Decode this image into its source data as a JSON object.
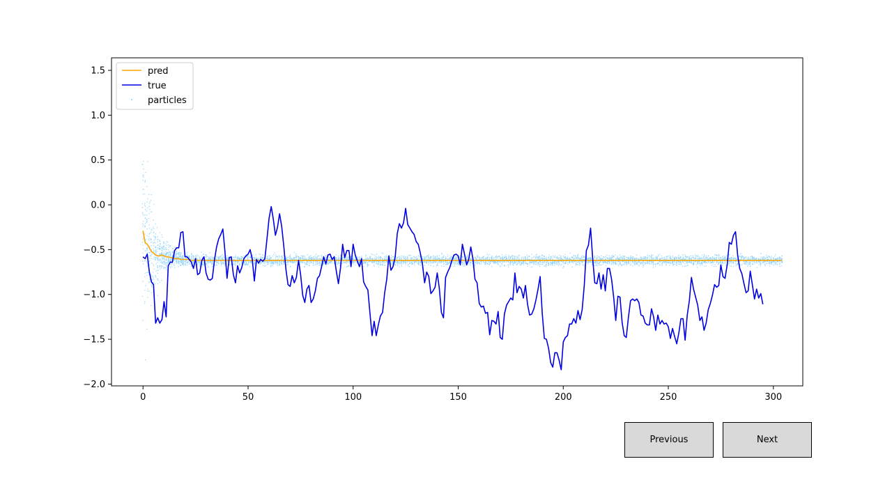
{
  "controls": {
    "previous_label": "Previous",
    "next_label": "Next"
  },
  "chart_data": {
    "type": "line",
    "title": "",
    "xlabel": "",
    "ylabel": "",
    "xlim": [
      -15,
      314
    ],
    "ylim": [
      -2.02,
      1.64
    ],
    "xticks": [
      0,
      50,
      100,
      150,
      200,
      250,
      300
    ],
    "yticks": [
      -2.0,
      -1.5,
      -1.0,
      -0.5,
      0.0,
      0.5,
      1.0,
      1.5
    ],
    "grid": false,
    "legend": {
      "placement": "upper-left",
      "entries": [
        "pred",
        "true",
        "particles"
      ]
    },
    "colors": {
      "pred": "#ffa500",
      "true": "#0000e0",
      "particles": "#87cefa"
    },
    "series": [
      {
        "name": "pred",
        "x_start": 0,
        "values": [
          -0.29,
          -0.42,
          -0.44,
          -0.48,
          -0.52,
          -0.54,
          -0.56,
          -0.57,
          -0.57,
          -0.56,
          -0.57,
          -0.58,
          -0.58,
          -0.59,
          -0.59,
          -0.6,
          -0.6,
          -0.6,
          -0.61,
          -0.61,
          -0.61,
          -0.61,
          -0.61,
          -0.62,
          -0.62,
          -0.61,
          -0.62,
          -0.62,
          -0.62,
          -0.62,
          -0.62,
          -0.62,
          -0.62,
          -0.62,
          -0.62,
          -0.62,
          -0.62,
          -0.62,
          -0.62,
          -0.62,
          -0.62,
          -0.62,
          -0.62,
          -0.62,
          -0.62,
          -0.62,
          -0.62,
          -0.62,
          -0.62,
          -0.62,
          -0.62,
          -0.62,
          -0.62,
          -0.62,
          -0.62,
          -0.62,
          -0.62,
          -0.62,
          -0.62,
          -0.62,
          -0.62,
          -0.62,
          -0.62,
          -0.62,
          -0.62,
          -0.62,
          -0.62,
          -0.62,
          -0.62,
          -0.62,
          -0.62,
          -0.62,
          -0.62,
          -0.62,
          -0.62,
          -0.62,
          -0.62,
          -0.62,
          -0.62,
          -0.62,
          -0.62,
          -0.62,
          -0.62,
          -0.62,
          -0.62,
          -0.62,
          -0.62,
          -0.62,
          -0.62,
          -0.62,
          -0.62,
          -0.62,
          -0.62,
          -0.62,
          -0.62,
          -0.62,
          -0.62,
          -0.62,
          -0.62,
          -0.62,
          -0.62,
          -0.62,
          -0.62,
          -0.62,
          -0.62,
          -0.62,
          -0.62,
          -0.62,
          -0.62,
          -0.62,
          -0.62,
          -0.62,
          -0.62,
          -0.62,
          -0.62,
          -0.62,
          -0.62,
          -0.62,
          -0.62,
          -0.62,
          -0.62,
          -0.62,
          -0.62,
          -0.62,
          -0.62,
          -0.62,
          -0.62,
          -0.62,
          -0.62,
          -0.62,
          -0.62,
          -0.62,
          -0.62,
          -0.62,
          -0.62,
          -0.62,
          -0.62,
          -0.62,
          -0.62,
          -0.62,
          -0.62,
          -0.62,
          -0.62,
          -0.62,
          -0.62,
          -0.62,
          -0.62,
          -0.62,
          -0.62,
          -0.62,
          -0.62,
          -0.62,
          -0.62,
          -0.62,
          -0.62,
          -0.62,
          -0.62,
          -0.62,
          -0.62,
          -0.62,
          -0.62,
          -0.62,
          -0.62,
          -0.62,
          -0.62,
          -0.62,
          -0.62,
          -0.62,
          -0.62,
          -0.62,
          -0.62,
          -0.62,
          -0.62,
          -0.62,
          -0.62,
          -0.62,
          -0.62,
          -0.62,
          -0.62,
          -0.62,
          -0.62,
          -0.62,
          -0.62,
          -0.62,
          -0.62,
          -0.62,
          -0.62,
          -0.62,
          -0.62,
          -0.62,
          -0.62,
          -0.62,
          -0.62,
          -0.62,
          -0.62,
          -0.62,
          -0.62,
          -0.62,
          -0.62,
          -0.62,
          -0.62,
          -0.62,
          -0.62,
          -0.62,
          -0.62,
          -0.62,
          -0.62,
          -0.62,
          -0.62,
          -0.62,
          -0.62,
          -0.62,
          -0.62,
          -0.62,
          -0.62,
          -0.62,
          -0.62,
          -0.62,
          -0.62,
          -0.62,
          -0.62,
          -0.62,
          -0.62,
          -0.62,
          -0.62,
          -0.62,
          -0.62,
          -0.62,
          -0.62,
          -0.62,
          -0.62,
          -0.62,
          -0.62,
          -0.62,
          -0.62,
          -0.62,
          -0.62,
          -0.62,
          -0.62,
          -0.62,
          -0.62,
          -0.62,
          -0.62,
          -0.62,
          -0.62,
          -0.62,
          -0.62,
          -0.62,
          -0.62,
          -0.62,
          -0.62,
          -0.62,
          -0.62,
          -0.62,
          -0.62,
          -0.62,
          -0.62,
          -0.62,
          -0.62,
          -0.62,
          -0.62,
          -0.62,
          -0.62,
          -0.62,
          -0.62,
          -0.62,
          -0.62,
          -0.62,
          -0.62,
          -0.62,
          -0.62,
          -0.62,
          -0.62,
          -0.62,
          -0.62,
          -0.62,
          -0.62,
          -0.62,
          -0.62,
          -0.62,
          -0.62,
          -0.62,
          -0.62,
          -0.62,
          -0.62,
          -0.62,
          -0.62,
          -0.62,
          -0.62,
          -0.62,
          -0.62,
          -0.62,
          -0.62,
          -0.62,
          -0.62,
          -0.62,
          -0.62,
          -0.62,
          -0.62,
          -0.62,
          -0.62,
          -0.62,
          -0.62,
          -0.62,
          -0.62
        ]
      },
      {
        "name": "true",
        "x_start": 0,
        "values": [
          -0.58,
          -0.6,
          -0.55,
          -0.75,
          -0.86,
          -0.89,
          -1.32,
          -1.26,
          -1.32,
          -1.28,
          -1.08,
          -1.25,
          -0.68,
          -0.64,
          -0.64,
          -0.51,
          -0.48,
          -0.48,
          -0.31,
          -0.3,
          -0.58,
          -0.58,
          -0.61,
          -0.64,
          -0.71,
          -0.6,
          -0.78,
          -0.76,
          -0.62,
          -0.58,
          -0.76,
          -0.83,
          -0.84,
          -0.82,
          -0.62,
          -0.47,
          -0.38,
          -0.33,
          -0.27,
          -0.52,
          -0.82,
          -0.59,
          -0.58,
          -0.78,
          -0.87,
          -0.68,
          -0.76,
          -0.7,
          -0.6,
          -0.57,
          -0.55,
          -0.5,
          -0.61,
          -0.85,
          -0.61,
          -0.65,
          -0.61,
          -0.63,
          -0.6,
          -0.38,
          -0.15,
          -0.02,
          -0.16,
          -0.34,
          -0.25,
          -0.1,
          -0.24,
          -0.46,
          -0.72,
          -0.89,
          -0.91,
          -0.79,
          -0.87,
          -0.81,
          -0.62,
          -0.78,
          -1.01,
          -1.09,
          -0.94,
          -0.9,
          -1.09,
          -1.05,
          -0.96,
          -0.82,
          -0.79,
          -0.69,
          -0.58,
          -0.66,
          -0.56,
          -0.55,
          -0.61,
          -0.58,
          -0.74,
          -0.88,
          -0.7,
          -0.44,
          -0.59,
          -0.51,
          -0.51,
          -0.69,
          -0.44,
          -0.56,
          -0.63,
          -0.69,
          -0.6,
          -0.86,
          -0.91,
          -0.95,
          -1.21,
          -1.46,
          -1.3,
          -1.46,
          -1.34,
          -1.24,
          -1.2,
          -0.98,
          -0.83,
          -0.57,
          -0.73,
          -0.69,
          -0.58,
          -0.32,
          -0.21,
          -0.26,
          -0.2,
          -0.04,
          -0.22,
          -0.26,
          -0.3,
          -0.33,
          -0.41,
          -0.44,
          -0.54,
          -0.66,
          -0.87,
          -0.75,
          -0.8,
          -0.99,
          -0.96,
          -0.92,
          -0.76,
          -0.93,
          -1.2,
          -1.26,
          -0.81,
          -0.75,
          -0.7,
          -0.62,
          -0.56,
          -0.55,
          -0.57,
          -0.67,
          -0.44,
          -0.55,
          -0.67,
          -0.61,
          -0.47,
          -0.6,
          -0.83,
          -0.87,
          -1.1,
          -1.14,
          -1.13,
          -1.21,
          -1.2,
          -1.45,
          -1.29,
          -1.3,
          -1.33,
          -1.19,
          -1.48,
          -1.5,
          -1.22,
          -1.12,
          -1.08,
          -1.04,
          -1.06,
          -0.76,
          -0.98,
          -0.91,
          -0.94,
          -1.04,
          -0.9,
          -1.11,
          -1.23,
          -1.22,
          -1.16,
          -1.06,
          -0.94,
          -0.8,
          -1.21,
          -1.49,
          -1.5,
          -1.6,
          -1.76,
          -1.81,
          -1.65,
          -1.65,
          -1.73,
          -1.84,
          -1.53,
          -1.48,
          -1.46,
          -1.33,
          -1.33,
          -1.27,
          -1.32,
          -1.18,
          -1.28,
          -1.17,
          -0.9,
          -0.51,
          -0.45,
          -0.26,
          -0.6,
          -0.87,
          -0.88,
          -0.76,
          -0.94,
          -0.78,
          -0.96,
          -0.71,
          -0.71,
          -0.83,
          -1.03,
          -1.29,
          -1.02,
          -1.03,
          -1.31,
          -1.46,
          -1.48,
          -1.26,
          -1.07,
          -1.05,
          -1.07,
          -1.05,
          -1.09,
          -1.23,
          -1.24,
          -1.32,
          -1.34,
          -1.34,
          -1.16,
          -1.25,
          -1.4,
          -1.23,
          -1.33,
          -1.29,
          -1.33,
          -1.32,
          -1.36,
          -1.49,
          -1.38,
          -1.47,
          -1.55,
          -1.43,
          -1.27,
          -1.27,
          -1.51,
          -1.23,
          -1.07,
          -0.81,
          -0.94,
          -1.03,
          -1.12,
          -1.29,
          -1.25,
          -1.4,
          -1.32,
          -1.17,
          -1.1,
          -1.01,
          -0.89,
          -0.92,
          -0.9,
          -0.67,
          -0.8,
          -0.82,
          -0.67,
          -0.42,
          -0.44,
          -0.34,
          -0.3,
          -0.56,
          -0.71,
          -0.77,
          -0.88,
          -0.98,
          -0.96,
          -0.74,
          -0.89,
          -1.05,
          -0.94,
          -1.04,
          -0.99,
          -1.11
        ]
      }
    ],
    "particles": {
      "name": "particles",
      "center": "pred",
      "initial_spread": 1.4,
      "steady_spread": 0.07,
      "per_step": 16
    }
  }
}
